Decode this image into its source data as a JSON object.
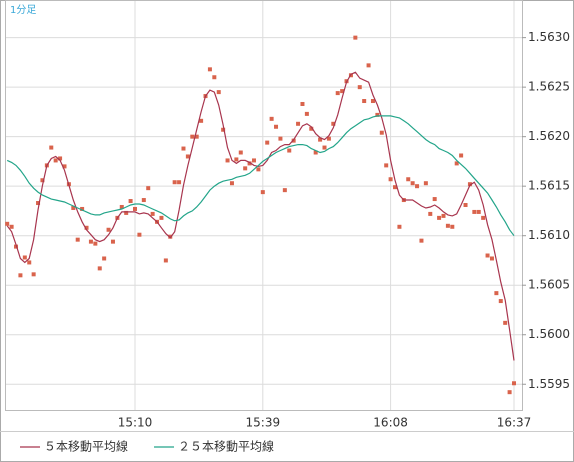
{
  "chart_data": {
    "type": "line",
    "subtitle": "1分足",
    "categories": [
      null,
      null,
      null,
      null,
      null,
      null,
      null,
      null,
      null,
      null,
      null,
      null,
      null,
      null,
      null,
      null,
      null,
      null,
      null,
      null,
      null,
      null,
      null,
      null,
      null,
      null,
      null,
      null,
      null,
      "15:10",
      null,
      null,
      null,
      null,
      null,
      null,
      null,
      null,
      null,
      null,
      null,
      null,
      null,
      null,
      null,
      null,
      null,
      null,
      null,
      null,
      null,
      null,
      null,
      null,
      null,
      null,
      null,
      null,
      "15:39",
      null,
      null,
      null,
      null,
      null,
      null,
      null,
      null,
      null,
      null,
      null,
      null,
      null,
      null,
      null,
      null,
      null,
      null,
      null,
      null,
      null,
      null,
      null,
      null,
      null,
      null,
      null,
      null,
      "16:08",
      null,
      null,
      null,
      null,
      null,
      null,
      null,
      null,
      null,
      null,
      null,
      null,
      null,
      null,
      null,
      null,
      null,
      null,
      null,
      null,
      null,
      null,
      null,
      null,
      null,
      null,
      null,
      "16:37"
    ],
    "series": [
      {
        "color": "#d9634c",
        "marker": "square",
        "values": [
          1.56112,
          1.56109,
          1.56089,
          1.5606,
          1.56078,
          1.56073,
          1.56061,
          1.56133,
          1.56156,
          1.56171,
          1.56189,
          1.56176,
          1.56178,
          1.5617,
          1.56152,
          1.56128,
          1.56096,
          1.56127,
          1.56108,
          1.56094,
          1.56092,
          1.56067,
          1.56077,
          1.56106,
          1.56094,
          1.56118,
          1.56129,
          1.56123,
          1.56135,
          1.56127,
          1.56101,
          1.56136,
          1.56148,
          1.56122,
          1.56114,
          1.56118,
          1.56075,
          1.56099,
          1.56154,
          1.56154,
          1.56188,
          1.5618,
          1.562,
          1.562,
          1.56216,
          1.56241,
          1.56268,
          1.5626,
          1.56245,
          1.56207,
          1.56176,
          1.56153,
          1.56177,
          1.56184,
          1.56168,
          1.56173,
          1.56176,
          1.56167,
          1.56144,
          1.56194,
          1.56218,
          1.5621,
          1.56198,
          1.56146,
          1.56186,
          1.56196,
          1.56213,
          1.56233,
          1.56223,
          1.56208,
          1.56184,
          1.56197,
          1.56189,
          1.56198,
          1.56213,
          1.56244,
          1.56246,
          1.56256,
          1.56262,
          1.563,
          1.5625,
          1.56236,
          1.56272,
          1.56236,
          1.56222,
          1.56204,
          1.56171,
          1.56157,
          1.56149,
          1.56109,
          1.56136,
          1.56157,
          1.56153,
          1.5615,
          1.56095,
          1.56153,
          1.56122,
          1.56137,
          1.56118,
          1.5612,
          1.5611,
          1.56109,
          1.56173,
          1.56181,
          1.56131,
          1.56152,
          1.56124,
          1.56124,
          1.56118,
          1.5608,
          1.56077,
          1.56042,
          1.56034,
          1.56012,
          1.55942,
          1.55951
        ]
      },
      {
        "name": "５本移動平均線",
        "color": "#a8354e",
        "marker": "none",
        "values": [
          1.5611,
          1.56104,
          1.56091,
          1.56077,
          1.56073,
          1.56077,
          1.56096,
          1.56126,
          1.56151,
          1.56171,
          1.56178,
          1.5618,
          1.56176,
          1.56166,
          1.56151,
          1.56136,
          1.56124,
          1.56114,
          1.56106,
          1.56101,
          1.56096,
          1.56094,
          1.56096,
          1.56101,
          1.56108,
          1.56118,
          1.56124,
          1.56124,
          1.56124,
          1.56124,
          1.56122,
          1.56123,
          1.56122,
          1.56118,
          1.56114,
          1.56108,
          1.56102,
          1.56098,
          1.56104,
          1.56126,
          1.56151,
          1.56171,
          1.56189,
          1.56207,
          1.56225,
          1.56241,
          1.56247,
          1.56245,
          1.56232,
          1.56212,
          1.56189,
          1.56176,
          1.56173,
          1.56176,
          1.56176,
          1.56174,
          1.56171,
          1.5617,
          1.56171,
          1.56176,
          1.56184,
          1.56186,
          1.5619,
          1.56192,
          1.56192,
          1.56197,
          1.56204,
          1.56211,
          1.56213,
          1.5621,
          1.56203,
          1.56199,
          1.56197,
          1.56201,
          1.56209,
          1.56222,
          1.56239,
          1.56255,
          1.56263,
          1.56265,
          1.56259,
          1.56257,
          1.56255,
          1.56242,
          1.56232,
          1.56219,
          1.56202,
          1.56176,
          1.56156,
          1.56141,
          1.56136,
          1.56136,
          1.56136,
          1.56133,
          1.5613,
          1.56128,
          1.56129,
          1.56131,
          1.56128,
          1.56124,
          1.56121,
          1.5612,
          1.56122,
          1.56131,
          1.56141,
          1.56151,
          1.56154,
          1.56146,
          1.56131,
          1.56111,
          1.56096,
          1.56075,
          1.56053,
          1.56035,
          1.56005,
          1.55974
        ]
      },
      {
        "name": "２５本移動平均線",
        "color": "#23a58a",
        "marker": "none",
        "values": [
          1.56176,
          1.56174,
          1.56171,
          1.56166,
          1.5616,
          1.56153,
          1.56148,
          1.56144,
          1.56141,
          1.56139,
          1.56137,
          1.56136,
          1.56135,
          1.56134,
          1.56132,
          1.5613,
          1.56128,
          1.56126,
          1.56124,
          1.56122,
          1.56121,
          1.56121,
          1.56123,
          1.56124,
          1.56125,
          1.56126,
          1.56127,
          1.56129,
          1.56131,
          1.56132,
          1.56132,
          1.56131,
          1.56129,
          1.56127,
          1.56125,
          1.56123,
          1.5612,
          1.56117,
          1.56115,
          1.56116,
          1.5612,
          1.56123,
          1.56125,
          1.56129,
          1.56134,
          1.5614,
          1.56146,
          1.5615,
          1.56153,
          1.56155,
          1.56156,
          1.56157,
          1.56159,
          1.5616,
          1.56161,
          1.56163,
          1.56167,
          1.56171,
          1.56175,
          1.56178,
          1.56181,
          1.56184,
          1.56186,
          1.56188,
          1.5619,
          1.56191,
          1.56192,
          1.56192,
          1.56191,
          1.56188,
          1.56186,
          1.56184,
          1.56185,
          1.56188,
          1.5619,
          1.56194,
          1.56199,
          1.56204,
          1.56208,
          1.56211,
          1.56214,
          1.56217,
          1.56218,
          1.5622,
          1.56221,
          1.56221,
          1.56221,
          1.56221,
          1.5622,
          1.56219,
          1.56216,
          1.56213,
          1.56209,
          1.56205,
          1.56201,
          1.56197,
          1.56194,
          1.56192,
          1.56188,
          1.56186,
          1.56184,
          1.56181,
          1.56176,
          1.56172,
          1.56168,
          1.56163,
          1.56158,
          1.56153,
          1.56148,
          1.56143,
          1.56136,
          1.56129,
          1.56121,
          1.56114,
          1.56106,
          1.561
        ]
      }
    ],
    "ylim": [
      1.55924,
      1.56338
    ],
    "yticks": [
      1.5595,
      {
        "value": 1.56,
        "label": "1.5600"
      },
      1.5605,
      {
        "value": 1.561,
        "label": "1.5610"
      },
      1.5615,
      {
        "value": 1.562,
        "label": "1.5620"
      },
      1.5625,
      {
        "value": 1.563,
        "label": "1.5630"
      }
    ],
    "grid": true
  }
}
